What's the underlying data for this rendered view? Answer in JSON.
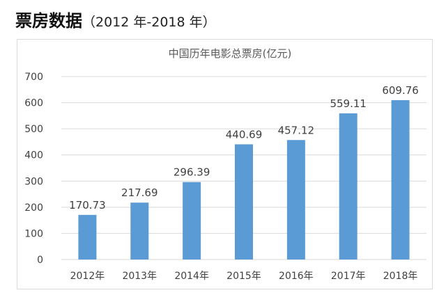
{
  "heading": {
    "main": "票房数据",
    "sub": "（2012 年-2018 年）"
  },
  "chart_data": {
    "type": "bar",
    "title": "中国历年电影总票房(亿元)",
    "categories": [
      "2012年",
      "2013年",
      "2014年",
      "2015年",
      "2016年",
      "2017年",
      "2018年"
    ],
    "values": [
      170.73,
      217.69,
      296.39,
      440.69,
      457.12,
      559.11,
      609.76
    ],
    "value_labels": [
      "170.73",
      "217.69",
      "296.39",
      "440.69",
      "457.12",
      "559.11",
      "609.76"
    ],
    "ylim": [
      0,
      700
    ],
    "yticks": [
      "0",
      "100",
      "200",
      "300",
      "400",
      "500",
      "600",
      "700"
    ],
    "grid": true,
    "legend": "none",
    "bar_color": "#5b9bd5",
    "grid_color": "#d9d9d9"
  }
}
